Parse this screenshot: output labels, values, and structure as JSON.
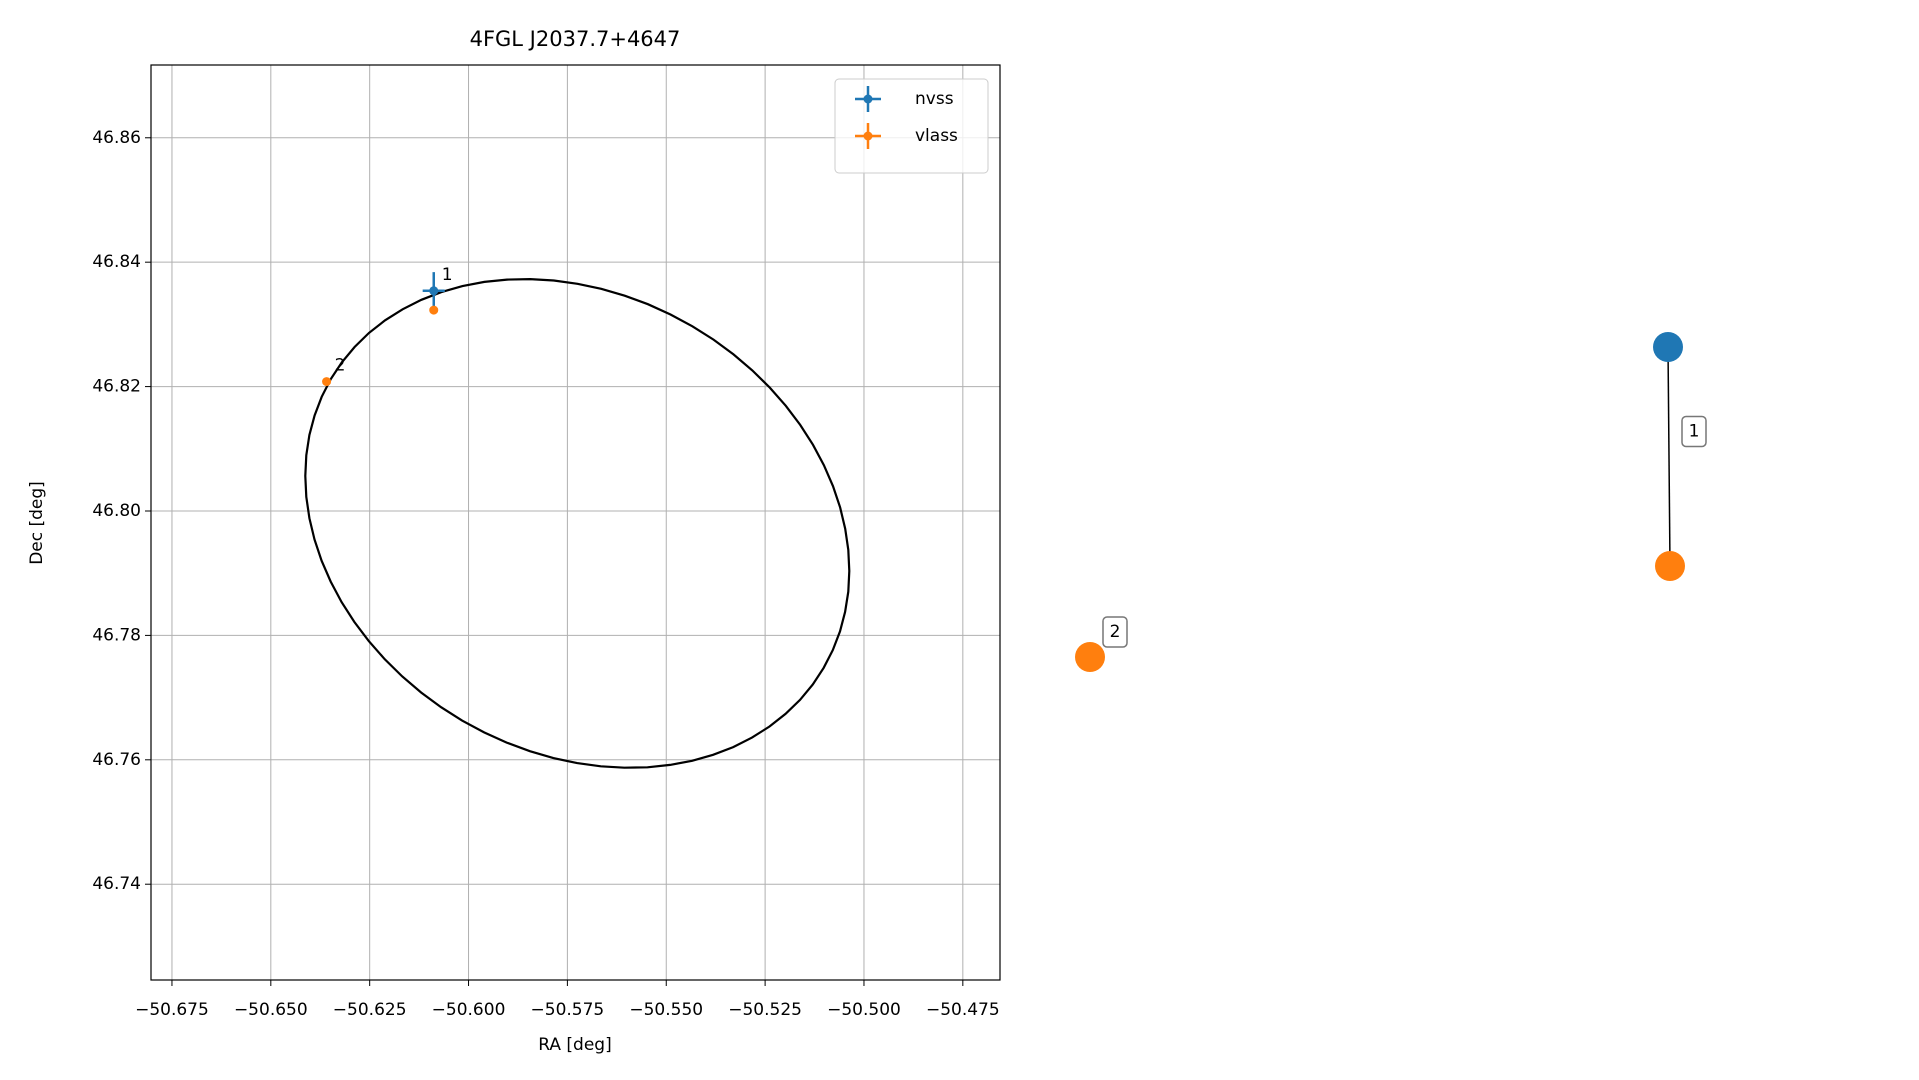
{
  "chart_data": [
    {
      "type": "scatter",
      "title": "4FGL J2037.7+4647",
      "xlabel": "RA [deg]",
      "ylabel": "Dec [deg]",
      "xlim": [
        -50.6803,
        -50.4656
      ],
      "ylim": [
        46.7246,
        46.8717
      ],
      "xticks": [
        {
          "value": -50.675,
          "label": "−50.675"
        },
        {
          "value": -50.65,
          "label": "−50.650"
        },
        {
          "value": -50.625,
          "label": "−50.625"
        },
        {
          "value": -50.6,
          "label": "−50.600"
        },
        {
          "value": -50.575,
          "label": "−50.575"
        },
        {
          "value": -50.55,
          "label": "−50.550"
        },
        {
          "value": -50.525,
          "label": "−50.525"
        },
        {
          "value": -50.5,
          "label": "−50.500"
        },
        {
          "value": -50.475,
          "label": "−50.475"
        }
      ],
      "yticks": [
        46.74,
        46.76,
        46.78,
        {
          "value": 46.8,
          "label": "46.80"
        },
        46.82,
        46.84,
        46.86
      ],
      "grid": true,
      "legend": "upper right",
      "series": [
        {
          "name": "nvss",
          "color": "#1f77b4",
          "x": [
            -50.6088
          ],
          "values": [
            46.8354
          ],
          "xerr": [
            0.0028
          ],
          "yerr": [
            0.003
          ],
          "labels": [
            "1"
          ]
        },
        {
          "name": "vlass",
          "color": "#ff7f0e",
          "x": [
            -50.6088,
            -50.6359
          ],
          "values": [
            46.8323,
            46.8208
          ],
          "xerr": [
            0.0004,
            0.0004
          ],
          "yerr": [
            0.0004,
            0.0004
          ],
          "labels": [
            null,
            "2"
          ]
        }
      ],
      "ellipse": {
        "center": [
          -50.5725,
          46.798
        ],
        "semi_major": 0.0694,
        "semi_minor": 0.0382,
        "angle": -9.1,
        "color": "#000000"
      }
    },
    {
      "type": "network",
      "nodes": [
        {
          "color": "#1f77b4"
        },
        {
          "color": "#ff7f0e"
        },
        {
          "color": "#ff7f0e"
        }
      ],
      "edges": [
        {
          "source": 0,
          "target": 1,
          "label": "1"
        }
      ],
      "node_labels": [
        {
          "node": 2,
          "label": "2"
        }
      ]
    }
  ]
}
